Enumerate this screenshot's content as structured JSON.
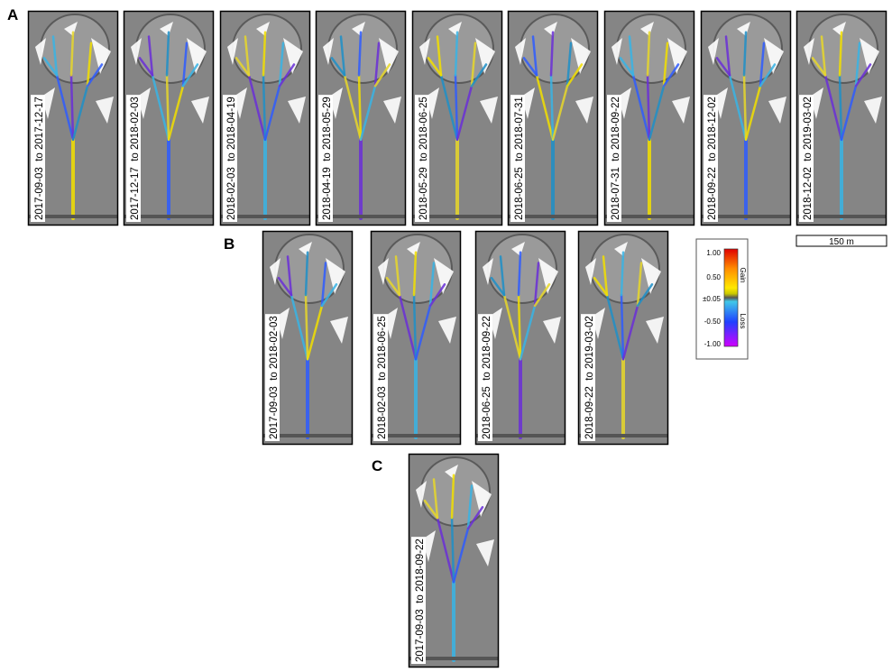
{
  "panels": [
    {
      "label": "A",
      "items": [
        "2017-09-03  to 2017-12-17",
        "2017-12-17  to 2018-02-03",
        "2018-02-03  to 2018-04-19",
        "2018-04-19  to 2018-05-29",
        "2018-05-29  to 2018-06-25",
        "2018-06-25  to 2018-07-31",
        "2018-07-31  to 2018-09-22",
        "2018-09-22  to 2018-12-02",
        "2018-12-02  to 2019-03-02"
      ]
    },
    {
      "label": "B",
      "items": [
        "2017-09-03  to 2018-02-03",
        "2018-02-03  to 2018-06-25",
        "2018-06-25  to 2018-09-22",
        "2018-09-22  to 2019-03-02"
      ]
    },
    {
      "label": "C",
      "items": [
        "2017-09-03  to 2018-09-22"
      ]
    }
  ],
  "legend": {
    "ticks": [
      "1.00",
      "0.50",
      "±0.05",
      "-0.50",
      "-1.00"
    ],
    "gain": "Gain",
    "loss": "Loss"
  },
  "scale_bar": "150 m"
}
